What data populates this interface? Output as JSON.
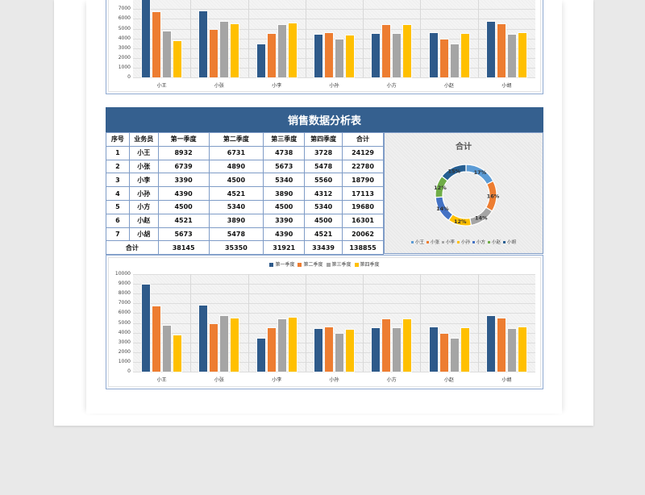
{
  "colors": {
    "page_bg": "#e9e9e9",
    "header_bar": "#35608f",
    "table_border": "#7f9cc7",
    "q1": "#2e5a8a",
    "q2": "#ed7d31",
    "q3": "#a5a5a5",
    "q4": "#ffc000"
  },
  "title": "销售数据分析表",
  "table": {
    "headers": [
      "序号",
      "业务员",
      "第一季度",
      "第二季度",
      "第三季度",
      "第四季度",
      "合计"
    ],
    "rows": [
      [
        "1",
        "小王",
        "8932",
        "6731",
        "4738",
        "3728",
        "24129"
      ],
      [
        "2",
        "小张",
        "6739",
        "4890",
        "5673",
        "5478",
        "22780"
      ],
      [
        "3",
        "小李",
        "3390",
        "4500",
        "5340",
        "5560",
        "18790"
      ],
      [
        "4",
        "小孙",
        "4390",
        "4521",
        "3890",
        "4312",
        "17113"
      ],
      [
        "5",
        "小方",
        "4500",
        "5340",
        "4500",
        "5340",
        "19680"
      ],
      [
        "6",
        "小赵",
        "4521",
        "3890",
        "3390",
        "4500",
        "16301"
      ],
      [
        "7",
        "小胡",
        "5673",
        "5478",
        "4390",
        "4521",
        "20062"
      ]
    ],
    "total_row": [
      "合计",
      "38145",
      "35350",
      "31921",
      "33439",
      "138855"
    ]
  },
  "chart_data": [
    {
      "type": "bar",
      "title": "",
      "categories": [
        "小王",
        "小张",
        "小李",
        "小孙",
        "小方",
        "小赵",
        "小胡"
      ],
      "series": [
        {
          "name": "第一季度",
          "values": [
            8932,
            6739,
            3390,
            4390,
            4500,
            4521,
            5673
          ]
        },
        {
          "name": "第二季度",
          "values": [
            6731,
            4890,
            4500,
            4521,
            5340,
            3890,
            5478
          ]
        },
        {
          "name": "第三季度",
          "values": [
            4738,
            5673,
            5340,
            3890,
            4500,
            3390,
            4390
          ]
        },
        {
          "name": "第四季度",
          "values": [
            3728,
            5478,
            5560,
            4312,
            5340,
            4500,
            4521
          ]
        }
      ],
      "yticks": [
        "0",
        "1000",
        "2000",
        "3000",
        "4000",
        "5000",
        "6000",
        "7000"
      ],
      "ylim": [
        0,
        10000
      ],
      "legend_position": "top",
      "grid": true,
      "note": "top chart, partially cropped at top edge"
    },
    {
      "type": "pie",
      "subtype": "donut",
      "title": "合计",
      "categories": [
        "小王",
        "小张",
        "小李",
        "小孙",
        "小方",
        "小赵",
        "小胡"
      ],
      "values": [
        24129,
        22780,
        18790,
        17113,
        19680,
        16301,
        20062
      ],
      "labels": [
        "17%",
        "16%",
        "14%",
        "12%",
        "14%",
        "12%",
        "15%"
      ],
      "colors": [
        "#5b9bd5",
        "#ed7d31",
        "#a5a5a5",
        "#ffc000",
        "#4472c4",
        "#70ad47",
        "#255e91"
      ],
      "legend_position": "bottom"
    },
    {
      "type": "bar",
      "title": "",
      "categories": [
        "小王",
        "小张",
        "小李",
        "小孙",
        "小方",
        "小赵",
        "小胡"
      ],
      "series": [
        {
          "name": "第一季度",
          "values": [
            8932,
            6739,
            3390,
            4390,
            4500,
            4521,
            5673
          ]
        },
        {
          "name": "第二季度",
          "values": [
            6731,
            4890,
            4500,
            4521,
            5340,
            3890,
            5478
          ]
        },
        {
          "name": "第三季度",
          "values": [
            4738,
            5673,
            5340,
            3890,
            4500,
            3390,
            4390
          ]
        },
        {
          "name": "第四季度",
          "values": [
            3728,
            5478,
            5560,
            4312,
            5340,
            4500,
            4521
          ]
        }
      ],
      "yticks": [
        "0",
        "1000",
        "2000",
        "3000",
        "4000",
        "5000",
        "6000",
        "7000",
        "8000",
        "9000",
        "10000"
      ],
      "ylim": [
        0,
        10000
      ],
      "legend_position": "top",
      "grid": true
    }
  ]
}
